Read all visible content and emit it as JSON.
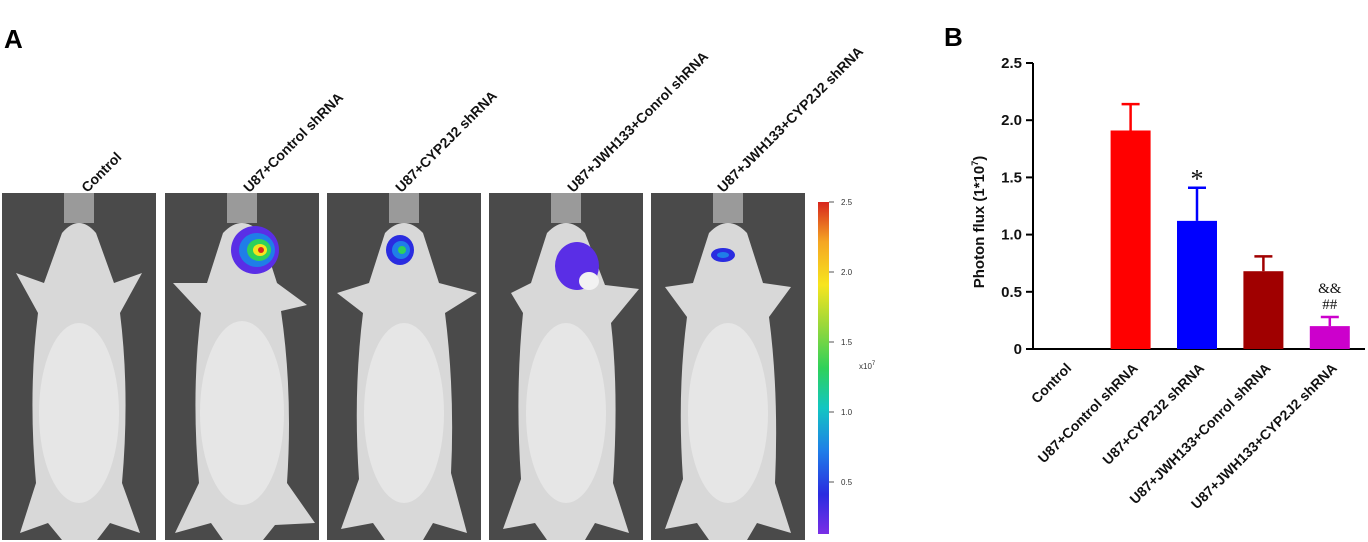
{
  "panels": {
    "a_label": "A",
    "b_label": "B"
  },
  "mice": [
    {
      "label": "Control",
      "signal": "none"
    },
    {
      "label": "U87+Control shRNA",
      "signal": "strong"
    },
    {
      "label": "U87+CYP2J2 shRNA",
      "signal": "medium"
    },
    {
      "label": "U87+JWH133+Conrol shRNA",
      "signal": "diffuse"
    },
    {
      "label": "U87+JWH133+CYP2J2 shRNA",
      "signal": "weak"
    }
  ],
  "colorbar": {
    "ticks": [
      "2.5",
      "2.0",
      "1.5",
      "1.0",
      "0.5"
    ],
    "unit_label": "x10",
    "unit_exp": "7",
    "colors": [
      "#d7261e",
      "#f5a623",
      "#f7e51e",
      "#9bd83a",
      "#2fd15a",
      "#12c6c2",
      "#1f7ee8",
      "#2a2ce0",
      "#7a2fe6"
    ]
  },
  "chart_data": {
    "type": "bar",
    "title": "",
    "xlabel": "",
    "ylabel": "Photon flux (1*10",
    "ylabel_exp": "7",
    "ylabel_close": ")",
    "ylim": [
      0,
      2.5
    ],
    "yticks": [
      "0",
      "0.5",
      "1.0",
      "1.5",
      "2.0",
      "2.5"
    ],
    "categories": [
      "Control",
      "U87+Control shRNA",
      "U87+CYP2J2 shRNA",
      "U87+JWH133+Conrol shRNA",
      "U87+JWH133+CYP2J2 shRNA"
    ],
    "values": [
      0,
      1.91,
      1.12,
      0.68,
      0.2
    ],
    "errors": [
      0,
      0.23,
      0.29,
      0.13,
      0.08
    ],
    "colors": [
      "#ffffff",
      "#ff0000",
      "#0000ff",
      "#a00000",
      "#cc00cc"
    ],
    "annotations": [
      "",
      "",
      "*",
      "",
      "&&\n##"
    ],
    "grid": false
  }
}
